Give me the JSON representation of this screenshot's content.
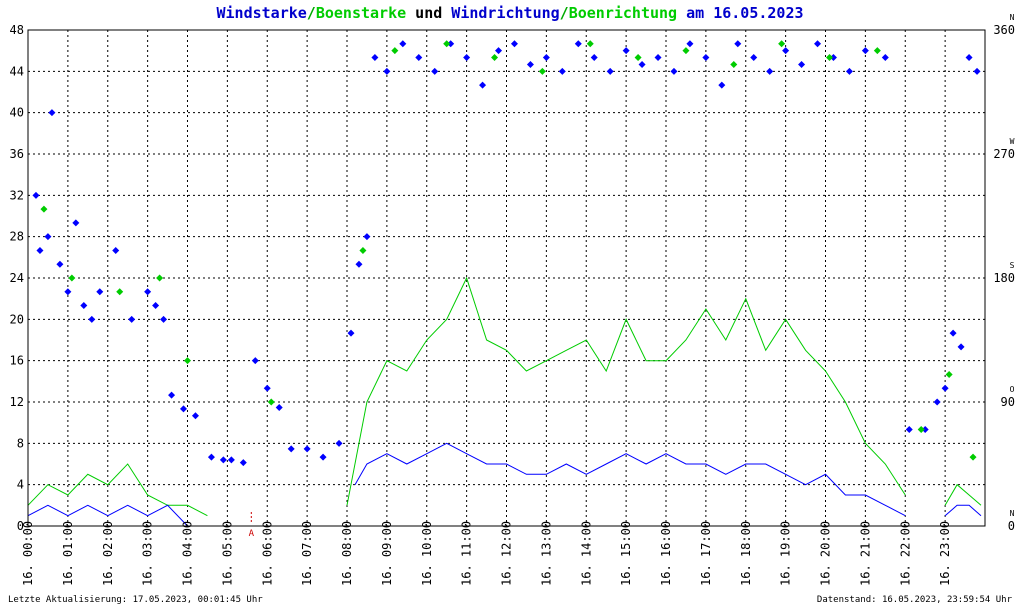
{
  "chart_data": {
    "type": "scatter",
    "title_parts": [
      {
        "text": "Windstarke",
        "color": "#0000cc"
      },
      {
        "text": "/",
        "color": "#00aa00"
      },
      {
        "text": "Boenstarke",
        "color": "#00cc00"
      },
      {
        "text": " und ",
        "color": "#000000"
      },
      {
        "text": "Windrichtung",
        "color": "#0000cc"
      },
      {
        "text": "/",
        "color": "#00aa00"
      },
      {
        "text": "Boenrichtung",
        "color": "#00cc00"
      },
      {
        "text": " am 16.05.2023",
        "color": "#0000cc"
      }
    ],
    "y_left": {
      "min": 0,
      "max": 48,
      "ticks": [
        0,
        4,
        8,
        12,
        16,
        20,
        24,
        28,
        32,
        36,
        40,
        44,
        48
      ]
    },
    "y_right": {
      "min": 0,
      "max": 360,
      "ticks": [
        {
          "value": 0,
          "label": "0",
          "dir": "N"
        },
        {
          "value": 90,
          "label": "90",
          "dir": "O"
        },
        {
          "value": 180,
          "label": "180",
          "dir": "S"
        },
        {
          "value": 270,
          "label": "270",
          "dir": "W"
        },
        {
          "value": 360,
          "label": "360",
          "dir": "N"
        }
      ]
    },
    "x_range": [
      0,
      24
    ],
    "x_tick_labels": [
      "16. 00:00",
      "16. 01:00",
      "16. 02:00",
      "16. 03:00",
      "16. 04:00",
      "16. 05:00",
      "16. 06:00",
      "16. 07:00",
      "16. 08:00",
      "16. 09:00",
      "16. 10:00",
      "16. 11:00",
      "16. 12:00",
      "16. 13:00",
      "16. 14:00",
      "16. 15:00",
      "16. 16:00",
      "16. 17:00",
      "16. 18:00",
      "16. 19:00",
      "16. 20:00",
      "16. 21:00",
      "16. 22:00",
      "16. 23:00"
    ],
    "grid": true,
    "marker": {
      "x": 5.6,
      "label": "A",
      "color": "#cc0000"
    },
    "series": [
      {
        "kind": "wind_speed",
        "color": "#0000ff",
        "segments": [
          {
            "x": [
              0.0,
              0.5,
              1.0,
              1.5,
              2.0,
              2.5,
              3.0,
              3.5,
              4.0
            ],
            "y": [
              1,
              2,
              1,
              2,
              1,
              2,
              1,
              2,
              0
            ]
          },
          {
            "x": [
              8.2,
              8.5,
              9.0,
              9.5,
              10.0,
              10.5,
              11.0,
              11.5,
              12.0,
              12.5,
              13.0,
              13.5,
              14.0,
              14.5,
              15.0,
              15.5,
              16.0,
              16.5,
              17.0,
              17.5,
              18.0,
              18.5,
              19.0,
              19.5,
              20.0,
              20.5,
              21.0,
              21.5,
              22.0
            ],
            "y": [
              4,
              6,
              7,
              6,
              7,
              8,
              7,
              6,
              6,
              5,
              5,
              6,
              5,
              6,
              7,
              6,
              7,
              6,
              6,
              5,
              6,
              6,
              5,
              4,
              5,
              3,
              3,
              2,
              1
            ]
          },
          {
            "x": [
              23.0,
              23.3,
              23.6,
              23.9
            ],
            "y": [
              1,
              2,
              2,
              1
            ]
          }
        ]
      },
      {
        "kind": "gust_speed",
        "color": "#00cc00",
        "segments": [
          {
            "x": [
              0.0,
              0.5,
              1.0,
              1.5,
              2.0,
              2.5,
              3.0,
              3.5,
              4.0,
              4.5
            ],
            "y": [
              2,
              4,
              3,
              5,
              4,
              6,
              3,
              2,
              2,
              1
            ]
          },
          {
            "x": [
              8.0,
              8.5,
              9.0,
              9.5,
              10.0,
              10.5,
              11.0,
              11.5,
              12.0,
              12.5,
              13.0,
              13.5,
              14.0,
              14.5,
              15.0,
              15.5,
              16.0,
              16.5,
              17.0,
              17.5,
              18.0,
              18.5,
              19.0,
              19.5,
              20.0,
              20.5,
              21.0,
              21.5,
              22.0
            ],
            "y": [
              2,
              12,
              16,
              15,
              18,
              20,
              24,
              18,
              17,
              15,
              16,
              17,
              18,
              15,
              20,
              16,
              16,
              18,
              21,
              18,
              22,
              17,
              20,
              17,
              15,
              12,
              8,
              6,
              3
            ]
          },
          {
            "x": [
              23.0,
              23.3,
              23.6,
              23.9
            ],
            "y": [
              2,
              4,
              3,
              2
            ]
          }
        ]
      },
      {
        "kind": "wind_direction",
        "axis": "right",
        "color": "#0000ff",
        "points": [
          [
            0.2,
            240
          ],
          [
            0.3,
            200
          ],
          [
            0.5,
            210
          ],
          [
            0.6,
            300
          ],
          [
            0.8,
            190
          ],
          [
            1.0,
            170
          ],
          [
            1.2,
            220
          ],
          [
            1.4,
            160
          ],
          [
            1.6,
            150
          ],
          [
            1.8,
            170
          ],
          [
            2.2,
            200
          ],
          [
            2.6,
            150
          ],
          [
            3.0,
            170
          ],
          [
            3.2,
            160
          ],
          [
            3.4,
            150
          ],
          [
            3.6,
            95
          ],
          [
            3.9,
            85
          ],
          [
            4.2,
            80
          ],
          [
            4.6,
            50
          ],
          [
            4.9,
            48
          ],
          [
            5.1,
            48
          ],
          [
            5.4,
            46
          ],
          [
            5.7,
            120
          ],
          [
            6.0,
            100
          ],
          [
            6.3,
            86
          ],
          [
            6.6,
            56
          ],
          [
            7.0,
            56
          ],
          [
            7.4,
            50
          ],
          [
            7.8,
            60
          ],
          [
            8.1,
            140
          ],
          [
            8.3,
            190
          ],
          [
            8.5,
            210
          ],
          [
            8.7,
            340
          ],
          [
            9.0,
            330
          ],
          [
            9.4,
            350
          ],
          [
            9.8,
            340
          ],
          [
            10.2,
            330
          ],
          [
            10.6,
            350
          ],
          [
            11.0,
            340
          ],
          [
            11.4,
            320
          ],
          [
            11.8,
            345
          ],
          [
            12.2,
            350
          ],
          [
            12.6,
            335
          ],
          [
            13.0,
            340
          ],
          [
            13.4,
            330
          ],
          [
            13.8,
            350
          ],
          [
            14.2,
            340
          ],
          [
            14.6,
            330
          ],
          [
            15.0,
            345
          ],
          [
            15.4,
            335
          ],
          [
            15.8,
            340
          ],
          [
            16.2,
            330
          ],
          [
            16.6,
            350
          ],
          [
            17.0,
            340
          ],
          [
            17.4,
            320
          ],
          [
            17.8,
            350
          ],
          [
            18.2,
            340
          ],
          [
            18.6,
            330
          ],
          [
            19.0,
            345
          ],
          [
            19.4,
            335
          ],
          [
            19.8,
            350
          ],
          [
            20.2,
            340
          ],
          [
            20.6,
            330
          ],
          [
            21.0,
            345
          ],
          [
            21.5,
            340
          ],
          [
            22.1,
            70
          ],
          [
            22.5,
            70
          ],
          [
            22.8,
            90
          ],
          [
            23.0,
            100
          ],
          [
            23.2,
            140
          ],
          [
            23.4,
            130
          ],
          [
            23.6,
            340
          ],
          [
            23.8,
            330
          ]
        ]
      },
      {
        "kind": "gust_direction",
        "axis": "right",
        "color": "#00cc00",
        "points": [
          [
            0.4,
            230
          ],
          [
            1.1,
            180
          ],
          [
            2.3,
            170
          ],
          [
            3.3,
            180
          ],
          [
            4.0,
            120
          ],
          [
            6.1,
            90
          ],
          [
            8.4,
            200
          ],
          [
            9.2,
            345
          ],
          [
            10.5,
            350
          ],
          [
            11.7,
            340
          ],
          [
            12.9,
            330
          ],
          [
            14.1,
            350
          ],
          [
            15.3,
            340
          ],
          [
            16.5,
            345
          ],
          [
            17.7,
            335
          ],
          [
            18.9,
            350
          ],
          [
            20.1,
            340
          ],
          [
            21.3,
            345
          ],
          [
            22.4,
            70
          ],
          [
            23.1,
            110
          ],
          [
            23.7,
            50
          ]
        ]
      }
    ]
  },
  "footer": {
    "left": "Letzte Aktualisierung: 17.05.2023, 00:01:45 Uhr",
    "right": "Datenstand: 16.05.2023, 23:59:54 Uhr"
  }
}
